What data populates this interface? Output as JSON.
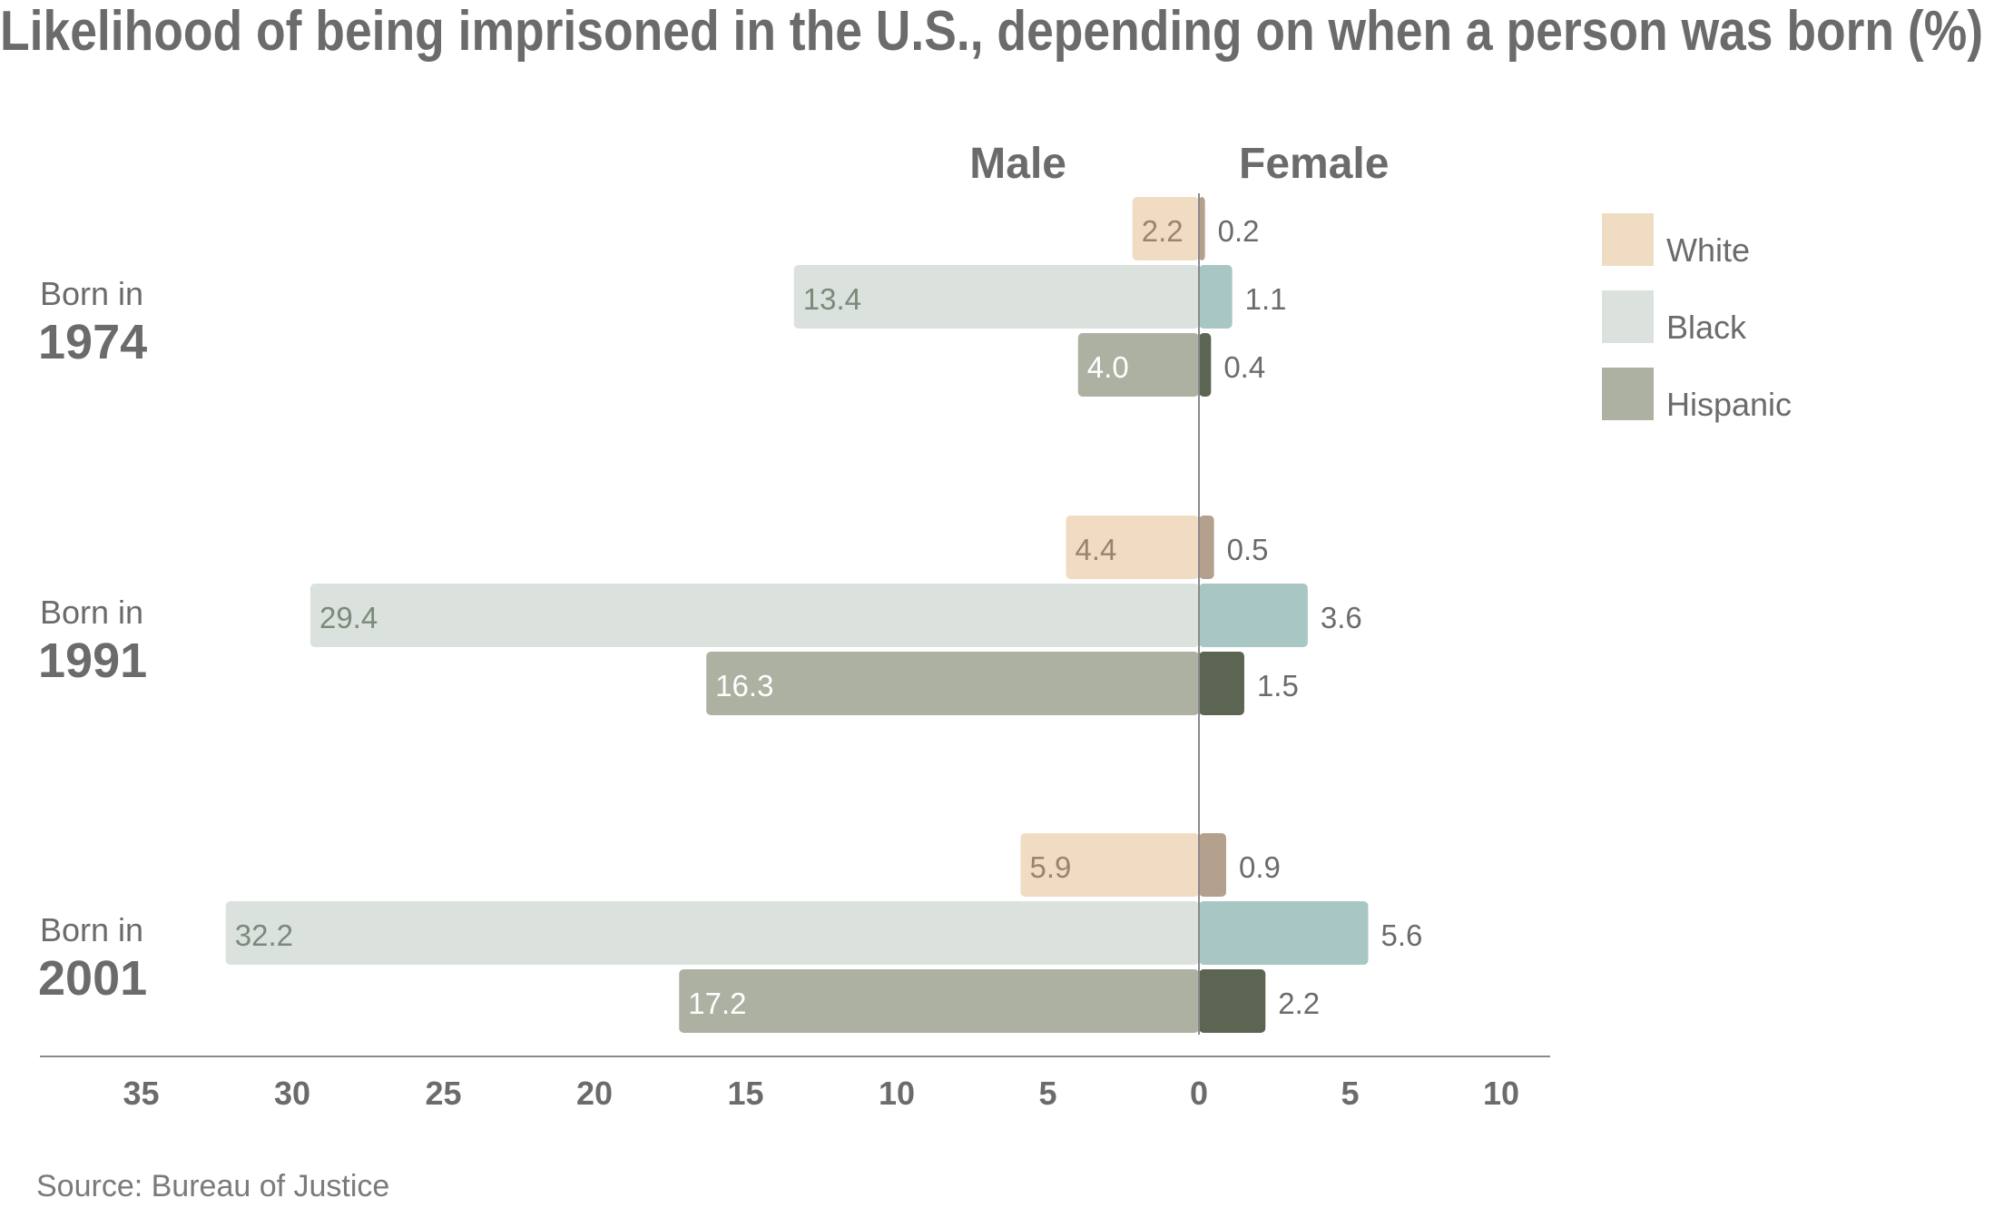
{
  "chart_data": {
    "type": "bar",
    "title": "Likelihood of being imprisoned in the U.S., depending on when a person was born (%)",
    "source": "Source: Bureau of Justice",
    "side_labels": {
      "left": "Male",
      "right": "Female"
    },
    "group_prefix": "Born in",
    "groups": [
      "1974",
      "1991",
      "2001"
    ],
    "x_ticks": {
      "male": [
        "35",
        "30",
        "25",
        "20",
        "15",
        "10",
        "5"
      ],
      "zero": "0",
      "female": [
        "5",
        "10"
      ]
    },
    "xlim_male": [
      0,
      35
    ],
    "xlim_female": [
      0,
      10
    ],
    "series": [
      {
        "name": "White",
        "male": [
          2.2,
          4.4,
          5.9
        ],
        "female": [
          0.2,
          0.5,
          0.9
        ],
        "male_labels": [
          "2.2",
          "4.4",
          "5.9"
        ],
        "female_labels": [
          "0.2",
          "0.5",
          "0.9"
        ],
        "male_color": "#f0dcc3",
        "female_color": "#b3a18e",
        "male_label_color": "#9a8470"
      },
      {
        "name": "Black",
        "male": [
          13.4,
          29.4,
          32.2
        ],
        "female": [
          1.1,
          3.6,
          5.6
        ],
        "male_labels": [
          "13.4",
          "29.4",
          "32.2"
        ],
        "female_labels": [
          "1.1",
          "3.6",
          "5.6"
        ],
        "male_color": "#dbe1dc",
        "female_color": "#a8c6c4",
        "male_label_color": "#7a8a7a"
      },
      {
        "name": "Hispanic",
        "male": [
          4.0,
          16.3,
          17.2
        ],
        "female": [
          0.4,
          1.5,
          2.2
        ],
        "male_labels": [
          "4.0",
          "16.3",
          "17.2"
        ],
        "female_labels": [
          "0.4",
          "1.5",
          "2.2"
        ],
        "male_color": "#acb1a1",
        "female_color": "#5c6452",
        "male_label_color": "#ffffff"
      }
    ],
    "legend_position": "top-right",
    "grid": false
  }
}
